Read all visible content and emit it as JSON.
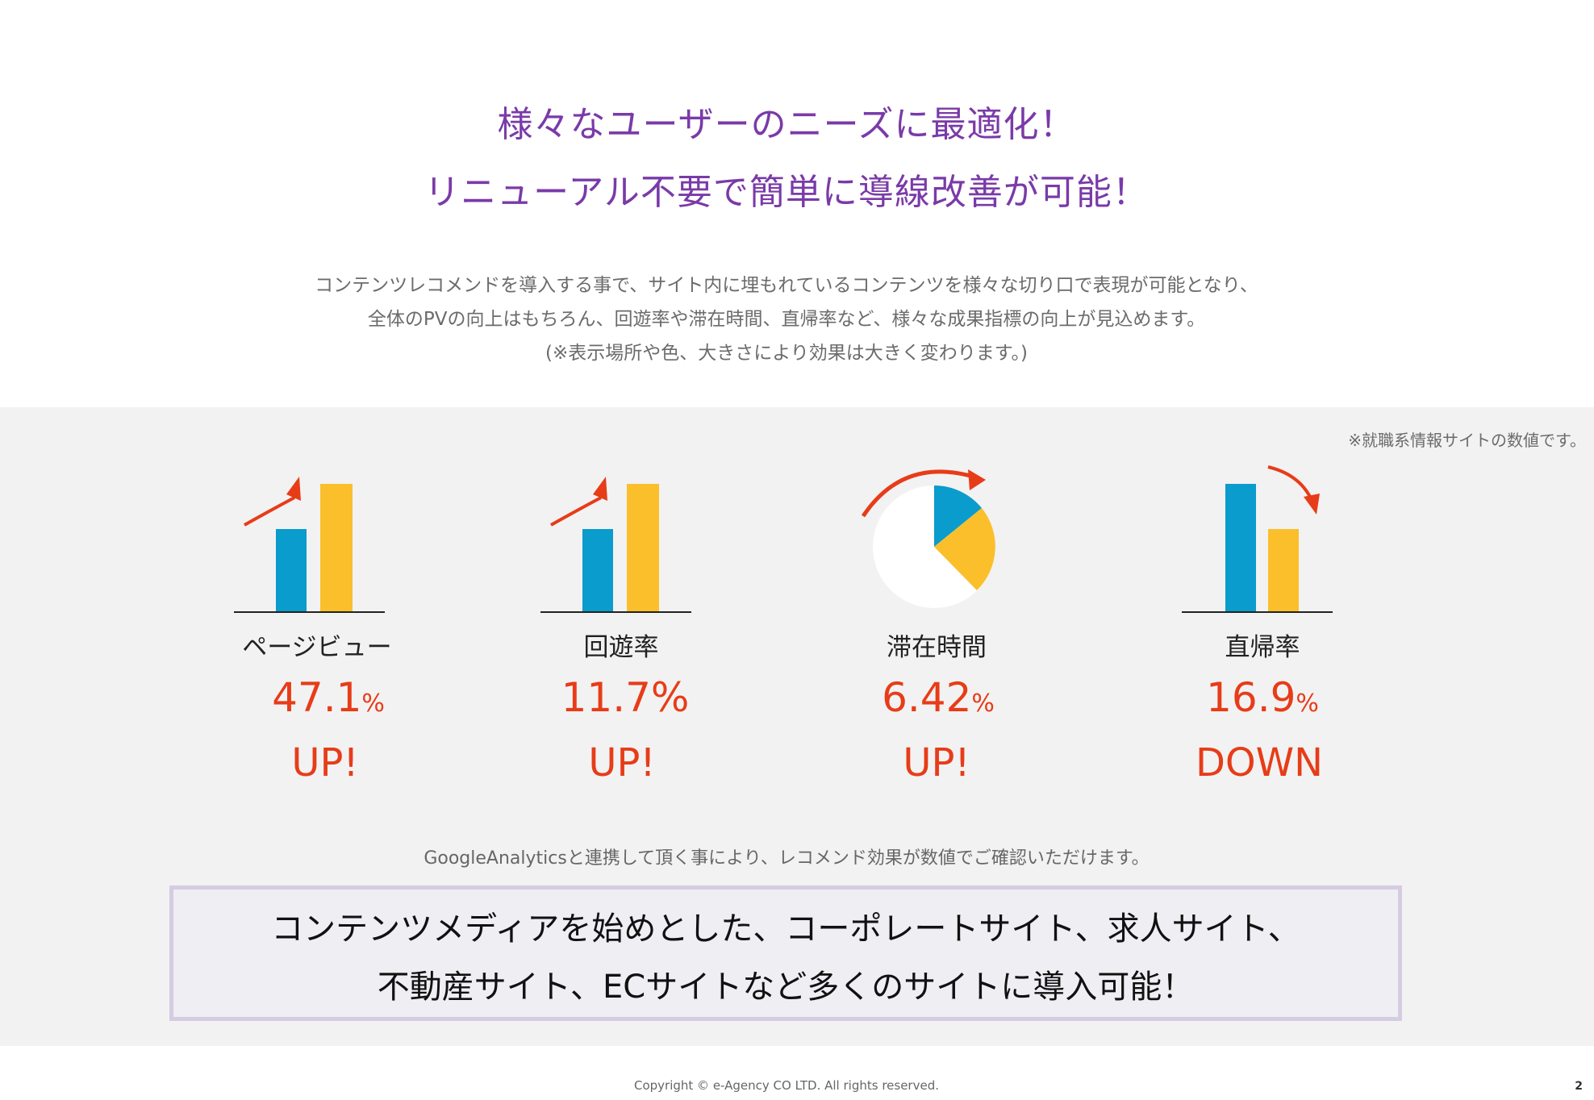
{
  "headline": {
    "line1": "様々なユーザーのニーズに最適化！",
    "line2": "リニューアル不要で簡単に導線改善が可能！"
  },
  "intro": {
    "line1": "コンテンツレコメンドを導入する事で、サイト内に埋もれているコンテンツを様々な切り口で表現が可能となり、",
    "line2": "全体のPVの向上はもちろん、回遊率や滞在時間、直帰率など、様々な成果指標の向上が見込めます。",
    "line3": "(※表示場所や色、大きさにより効果は大きく変わります。)"
  },
  "note": "※就職系情報サイトの数値です。",
  "metrics": [
    {
      "label": "ページビュー",
      "value": "47.1",
      "unit": "%",
      "direction": "UP!",
      "icon": "bar-chart-up-icon"
    },
    {
      "label": "回遊率",
      "value": "11.7",
      "unit": "%",
      "direction": "UP!",
      "icon": "bar-chart-up-icon"
    },
    {
      "label": "滞在時間",
      "value": "6.42",
      "unit": "%",
      "direction": "UP!",
      "icon": "pie-chart-icon"
    },
    {
      "label": "直帰率",
      "value": "16.9",
      "unit": "%",
      "direction": "DOWN",
      "icon": "bar-chart-down-icon"
    }
  ],
  "ga_note": "GoogleAnalyticsと連携して頂く事により、レコメンド効果が数値でご確認いただけます。",
  "cta": {
    "line1": "コンテンツメディアを始めとした、コーポレートサイト、求人サイト、",
    "line2": "不動産サイト、ECサイトなど多くのサイトに導入可能！"
  },
  "copyright": "Copyright © e-Agency CO LTD. All rights reserved.",
  "page_number": "2",
  "colors": {
    "headline": "#7a3aa8",
    "accent_red": "#e73c18",
    "bar_blue": "#0a9ccc",
    "bar_yellow": "#fbbf2c",
    "band_gray": "#f2f2f2"
  }
}
